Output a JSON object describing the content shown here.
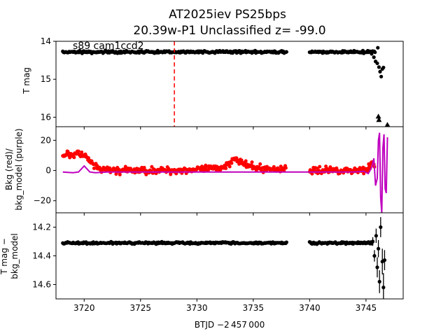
{
  "figure": {
    "title_line1": "AT2025iev  PS25bps",
    "title_line2": "20.39w-P1 Unclassified z= -99.0",
    "xlabel": "BTJD −2 457 000"
  },
  "chart_data": [
    {
      "type": "scatter",
      "panel": "top",
      "ylabel": "T mag",
      "annotation": "s89 cam1ccd2",
      "y_inverted": true,
      "xlim": [
        3717.5,
        3748.3
      ],
      "ylim": [
        16.25,
        14.0
      ],
      "x_ticks": [
        3720,
        3725,
        3730,
        3735,
        3740,
        3745
      ],
      "y_ticks": [
        14,
        15,
        16
      ],
      "y_tick_labels": [
        "14",
        "15",
        "16"
      ],
      "vline_x": 3728.0,
      "vline_color": "#ff0000",
      "marker_color": "#000000",
      "segments": [
        {
          "x_start": 3718.1,
          "x_end": 3737.95,
          "y": 14.28
        },
        {
          "x_start": 3740.0,
          "x_end": 3745.8,
          "y": 14.28
        }
      ],
      "tail_points": [
        {
          "x": 3745.5,
          "y": 14.33
        },
        {
          "x": 3745.7,
          "y": 14.42
        },
        {
          "x": 3745.85,
          "y": 14.53
        },
        {
          "x": 3746.0,
          "y": 14.58
        },
        {
          "x": 3746.05,
          "y": 14.17
        },
        {
          "x": 3746.15,
          "y": 14.68
        },
        {
          "x": 3746.25,
          "y": 14.8
        },
        {
          "x": 3746.35,
          "y": 14.93
        },
        {
          "x": 3746.45,
          "y": 14.73
        },
        {
          "x": 3746.55,
          "y": 14.69
        }
      ],
      "upper_limits": [
        {
          "x": 3746.1,
          "y": 15.98
        },
        {
          "x": 3746.15,
          "y": 16.07
        },
        {
          "x": 3746.9,
          "y": 16.2
        }
      ]
    },
    {
      "type": "line",
      "panel": "middle",
      "ylabel_line1": "Bkg (red)/",
      "ylabel_line2": "bkg_model (purple)",
      "xlim": [
        3717.5,
        3748.3
      ],
      "ylim": [
        -28,
        29
      ],
      "y_ticks": [
        -20,
        0,
        20
      ],
      "y_tick_labels": [
        "−20",
        "0",
        "20"
      ],
      "series": [
        {
          "color": "#ff0000",
          "x": [
            3718.1,
            3718.5,
            3719.0,
            3719.5,
            3720.0,
            3720.5,
            3721.2,
            3722.0,
            3723.0,
            3724.0,
            3725.0,
            3726.0,
            3727.0,
            3728.0,
            3729.0,
            3730.0,
            3731.0,
            3732.0,
            3732.8,
            3733.3,
            3733.8,
            3734.5,
            3735.5,
            3736.5,
            3737.5,
            3737.95,
            3740.0,
            3741.0,
            3742.0,
            3743.0,
            3744.0,
            3744.8,
            3745.3,
            3745.6,
            3745.8
          ],
          "y": [
            10,
            11,
            10.5,
            11,
            10,
            6,
            1,
            0.5,
            0,
            0,
            0,
            0,
            0,
            0,
            0.5,
            0.5,
            1,
            1.5,
            4,
            9,
            6,
            3,
            1.5,
            1,
            1,
            1,
            0,
            0,
            0.5,
            0,
            0,
            1,
            2,
            5,
            1
          ]
        },
        {
          "color": "#bf00bf",
          "x": [
            3718.1,
            3719.0,
            3719.5,
            3720.0,
            3720.5,
            3721.0,
            3722.0,
            3724.0,
            3726.0,
            3728.0,
            3730.0,
            3732.0,
            3734.0,
            3736.0,
            3737.95,
            3740.0,
            3742.0,
            3744.0,
            3744.8,
            3745.2,
            3745.5,
            3745.7,
            3745.85,
            3746.0,
            3746.1,
            3746.2,
            3746.3,
            3746.4,
            3746.5,
            3746.6,
            3746.7,
            3746.8,
            3746.9
          ],
          "y": [
            -1,
            -1.5,
            -1,
            3,
            -1,
            -1.5,
            -1,
            -1,
            -1,
            -1,
            -1,
            -1,
            -1,
            -1,
            -1,
            -1,
            -1,
            -1,
            -0.5,
            -2,
            2,
            8,
            -10,
            -5,
            20,
            25,
            -18,
            -28,
            15,
            24,
            -12,
            -15,
            22
          ]
        }
      ]
    },
    {
      "type": "scatter",
      "panel": "bottom",
      "ylabel_line1": "T mag −",
      "ylabel_line2": "bkg_model",
      "y_inverted": true,
      "xlim": [
        3717.5,
        3748.3
      ],
      "ylim": [
        14.7,
        14.1
      ],
      "y_ticks": [
        14.2,
        14.4,
        14.6
      ],
      "y_tick_labels": [
        "14.2",
        "14.4",
        "14.6"
      ],
      "marker_color": "#000000",
      "segments": [
        {
          "x_start": 3718.1,
          "x_end": 3737.95,
          "y": 14.31
        },
        {
          "x_start": 3740.0,
          "x_end": 3745.5,
          "y": 14.31
        }
      ],
      "tail_points": [
        {
          "x": 3745.6,
          "y": 14.3,
          "err": 0.03
        },
        {
          "x": 3745.75,
          "y": 14.4,
          "err": 0.04
        },
        {
          "x": 3745.9,
          "y": 14.26,
          "err": 0.05
        },
        {
          "x": 3746.0,
          "y": 14.48,
          "err": 0.07
        },
        {
          "x": 3746.1,
          "y": 14.35,
          "err": 0.06
        },
        {
          "x": 3746.2,
          "y": 14.58,
          "err": 0.08
        },
        {
          "x": 3746.3,
          "y": 14.2,
          "err": 0.07
        },
        {
          "x": 3746.45,
          "y": 14.44,
          "err": 0.09
        },
        {
          "x": 3746.55,
          "y": 14.62,
          "err": 0.1
        },
        {
          "x": 3746.65,
          "y": 14.43,
          "err": 0.07
        }
      ]
    }
  ]
}
